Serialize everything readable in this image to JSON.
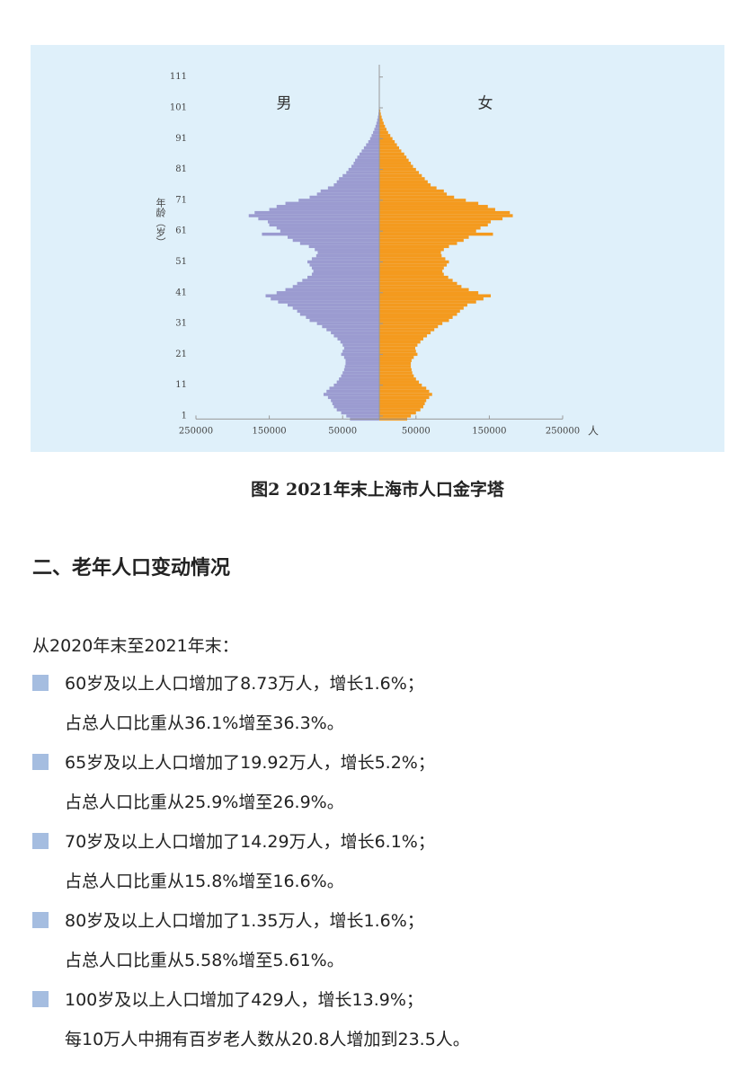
{
  "chart_data": {
    "type": "pyramid",
    "caption": "图2  2021年末上海市人口金字塔",
    "y_label": "年龄（岁）",
    "x_unit": "人",
    "ages": [
      0,
      1,
      2,
      3,
      4,
      5,
      6,
      7,
      8,
      9,
      10,
      11,
      12,
      13,
      14,
      15,
      16,
      17,
      18,
      19,
      20,
      21,
      22,
      23,
      24,
      25,
      26,
      27,
      28,
      29,
      30,
      31,
      32,
      33,
      34,
      35,
      36,
      37,
      38,
      39,
      40,
      41,
      42,
      43,
      44,
      45,
      46,
      47,
      48,
      49,
      50,
      51,
      52,
      53,
      54,
      55,
      56,
      57,
      58,
      59,
      60,
      61,
      62,
      63,
      64,
      65,
      66,
      67,
      68,
      69,
      70,
      71,
      72,
      73,
      74,
      75,
      76,
      77,
      78,
      79,
      80,
      81,
      82,
      83,
      84,
      85,
      86,
      87,
      88,
      89,
      90,
      91,
      92,
      93,
      94,
      95,
      96,
      97,
      98,
      99,
      100
    ],
    "series": [
      {
        "name": "男",
        "color": "#9b9bd0",
        "values": [
          40000,
          45000,
          52000,
          58000,
          62000,
          64000,
          66000,
          70000,
          76000,
          72000,
          68000,
          62000,
          58000,
          55000,
          52000,
          50000,
          48000,
          47000,
          46000,
          46000,
          48000,
          52000,
          50000,
          48000,
          50000,
          53000,
          57000,
          62000,
          66000,
          72000,
          78000,
          85000,
          95000,
          100000,
          108000,
          112000,
          118000,
          125000,
          138000,
          148000,
          155000,
          140000,
          128000,
          118000,
          112000,
          105000,
          98000,
          92000,
          90000,
          92000,
          95000,
          98000,
          92000,
          86000,
          84000,
          88000,
          96000,
          108000,
          118000,
          125000,
          160000,
          135000,
          140000,
          150000,
          152000,
          165000,
          178000,
          170000,
          150000,
          140000,
          128000,
          110000,
          95000,
          85000,
          80000,
          70000,
          62000,
          58000,
          55000,
          50000,
          45000,
          42000,
          38000,
          35000,
          33000,
          30000,
          27000,
          24000,
          21000,
          18000,
          15000,
          12500,
          10500,
          8500,
          6800,
          5200,
          3900,
          2800,
          1900,
          1200,
          800
        ]
      },
      {
        "name": "女",
        "color": "#f49a1e",
        "values": [
          38000,
          43000,
          50000,
          56000,
          60000,
          62000,
          64000,
          68000,
          72000,
          68000,
          64000,
          58000,
          54000,
          50000,
          47000,
          45000,
          44000,
          43000,
          43000,
          44000,
          47000,
          52000,
          50000,
          49000,
          52000,
          56000,
          60000,
          65000,
          70000,
          75000,
          80000,
          86000,
          95000,
          100000,
          106000,
          110000,
          115000,
          120000,
          132000,
          142000,
          152000,
          135000,
          122000,
          112000,
          106000,
          100000,
          94000,
          88000,
          86000,
          88000,
          92000,
          95000,
          90000,
          85000,
          84000,
          88000,
          95000,
          106000,
          115000,
          122000,
          155000,
          132000,
          138000,
          148000,
          152000,
          168000,
          182000,
          178000,
          158000,
          148000,
          135000,
          118000,
          102000,
          92000,
          88000,
          78000,
          70000,
          66000,
          62000,
          58000,
          54000,
          50000,
          46000,
          43000,
          40000,
          37000,
          34000,
          30000,
          27000,
          24000,
          21000,
          18000,
          15000,
          12000,
          9800,
          7800,
          6000,
          4500,
          3200,
          2100,
          1400
        ]
      }
    ],
    "xlim": [
      -250000,
      250000
    ],
    "xticks": [
      {
        "value": -250000,
        "label": "250000"
      },
      {
        "value": -150000,
        "label": "150000"
      },
      {
        "value": -50000,
        "label": "50000"
      },
      50000,
      150000,
      250000
    ],
    "ylim": [
      0,
      115
    ],
    "yticks": [
      1,
      11,
      21,
      31,
      41,
      51,
      61,
      71,
      81,
      91,
      101,
      111
    ]
  },
  "document": {
    "heading": "二、老年人口变动情况",
    "intro": "从2020年末至2021年末：",
    "items": [
      {
        "line1": "60岁及以上人口增加了8.73万人，增长1.6%；",
        "line2": "占总人口比重从36.1%增至36.3%。"
      },
      {
        "line1": "65岁及以上人口增加了19.92万人，增长5.2%；",
        "line2": "占总人口比重从25.9%增至26.9%。"
      },
      {
        "line1": "70岁及以上人口增加了14.29万人，增长6.1%；",
        "line2": "占总人口比重从15.8%增至16.6%。"
      },
      {
        "line1": "80岁及以上人口增加了1.35万人，增长1.6%；",
        "line2": "占总人口比重从5.58%增至5.61%。"
      },
      {
        "line1": "100岁及以上人口增加了429人，增长13.9%；",
        "line2": "每10万人中拥有百岁老人数从20.8人增加到23.5人。"
      }
    ]
  }
}
